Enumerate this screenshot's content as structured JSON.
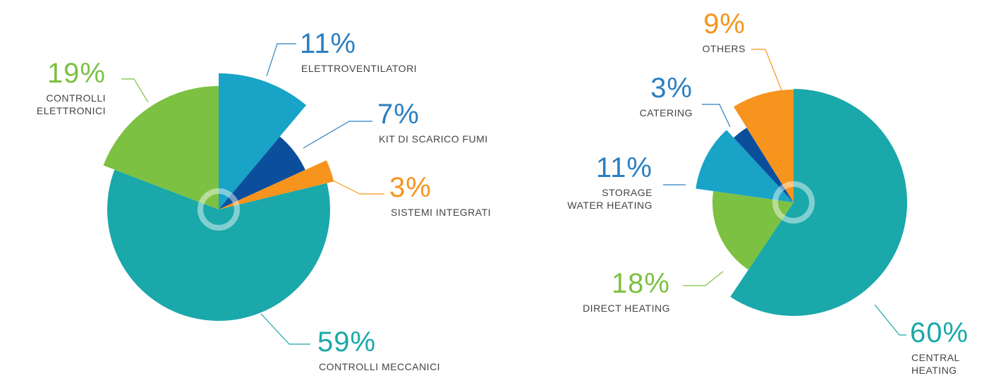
{
  "chart_data": [
    {
      "type": "pie",
      "categories": [
        "ELETTROVENTILATORI",
        "KIT DI SCARICO FUMI",
        "SISTEMI INTEGRATI",
        "CONTROLLI MECCANICI",
        "CONTROLLI\nELETTRONICI"
      ],
      "values": [
        11,
        7,
        3,
        59,
        19
      ],
      "value_labels": [
        "11%",
        "7%",
        "3%",
        "59%",
        "19%"
      ],
      "colors": [
        "#19a3c7",
        "#0b4f9c",
        "#f7941d",
        "#1aa8aa",
        "#7cc142"
      ],
      "label_colors": [
        "#2a7fc1",
        "#2a7fc1",
        "#f7941d",
        "#1aa8aa",
        "#7cc142"
      ]
    },
    {
      "type": "pie",
      "categories": [
        "CENTRAL\nHEATING",
        "DIRECT HEATING",
        "STORAGE\nWATER HEATING",
        "CATERING",
        "OTHERS"
      ],
      "values": [
        60,
        18,
        11,
        3,
        9
      ],
      "value_labels": [
        "60%",
        "18%",
        "11%",
        "3%",
        "9%"
      ],
      "colors": [
        "#1aa8aa",
        "#7cc142",
        "#19a3c7",
        "#0b4f9c",
        "#f7941d"
      ],
      "label_colors": [
        "#1aa8aa",
        "#7cc142",
        "#2a7fc1",
        "#2a7fc1",
        "#f7941d"
      ]
    }
  ]
}
